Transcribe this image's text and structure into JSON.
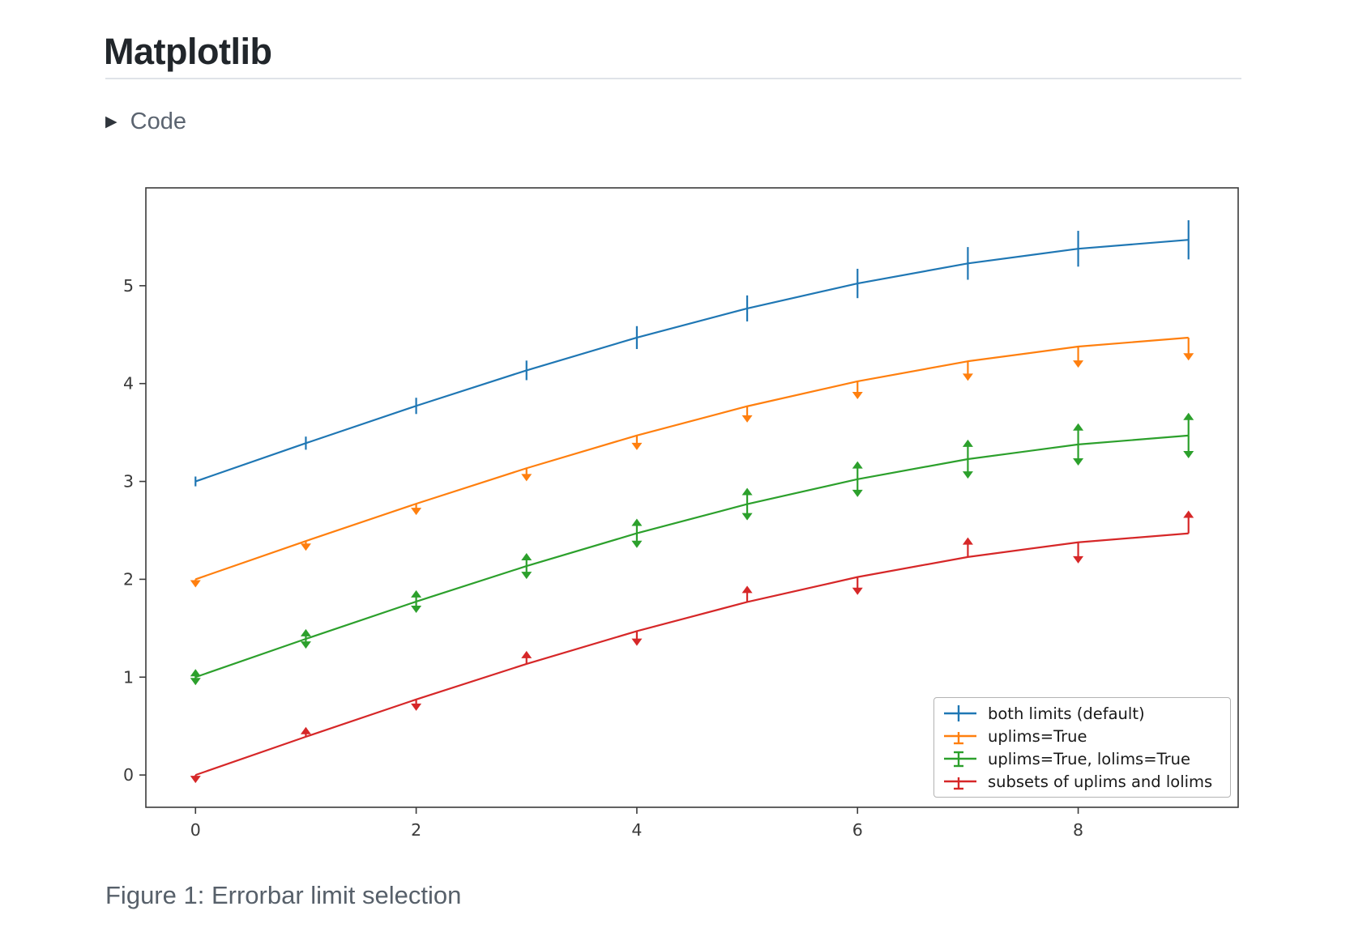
{
  "page": {
    "title": "Matplotlib",
    "code_toggle": {
      "label": "Code",
      "icon": "triangle-right"
    },
    "caption": "Figure 1: Errorbar limit selection"
  },
  "chart_data": {
    "type": "line",
    "title": "",
    "xlabel": "",
    "ylabel": "",
    "x": [
      0,
      1,
      2,
      3,
      4,
      5,
      6,
      7,
      8,
      9
    ],
    "xlim": [
      -0.45,
      9.45
    ],
    "ylim": [
      -0.33,
      6.0
    ],
    "xticks": [
      0,
      2,
      4,
      6,
      8
    ],
    "yticks": [
      0,
      1,
      2,
      3,
      4,
      5
    ],
    "grid": false,
    "legend_position": "lower right",
    "yerr": [
      0.05,
      0.067,
      0.083,
      0.1,
      0.117,
      0.133,
      0.15,
      0.167,
      0.183,
      0.2
    ],
    "series": [
      {
        "name": "both limits (default)",
        "color": "#1f77b4",
        "values": [
          3.0,
          3.391,
          3.772,
          4.135,
          4.47,
          4.768,
          5.023,
          5.228,
          5.378,
          5.469
        ],
        "error_style": "bars",
        "uplims": "none",
        "lolims": "none"
      },
      {
        "name": "uplims=True",
        "color": "#ff7f0e",
        "values": [
          2.0,
          2.391,
          2.772,
          3.135,
          3.47,
          3.768,
          4.023,
          4.228,
          4.378,
          4.469
        ],
        "error_style": "arrows",
        "uplims": "all",
        "lolims": "none"
      },
      {
        "name": "uplims=True, lolims=True",
        "color": "#2ca02c",
        "values": [
          1.0,
          1.391,
          1.772,
          2.135,
          2.47,
          2.768,
          3.023,
          3.228,
          3.378,
          3.469
        ],
        "error_style": "arrows",
        "uplims": "all",
        "lolims": "all"
      },
      {
        "name": "subsets of uplims and lolims",
        "color": "#d62728",
        "values": [
          0.0,
          0.391,
          0.772,
          1.135,
          1.47,
          1.768,
          2.023,
          2.228,
          2.378,
          2.469
        ],
        "error_style": "arrows",
        "uplims": [
          true,
          false,
          true,
          false,
          true,
          false,
          true,
          false,
          true,
          false
        ],
        "lolims": [
          false,
          true,
          false,
          true,
          false,
          true,
          false,
          true,
          false,
          true
        ]
      }
    ]
  }
}
